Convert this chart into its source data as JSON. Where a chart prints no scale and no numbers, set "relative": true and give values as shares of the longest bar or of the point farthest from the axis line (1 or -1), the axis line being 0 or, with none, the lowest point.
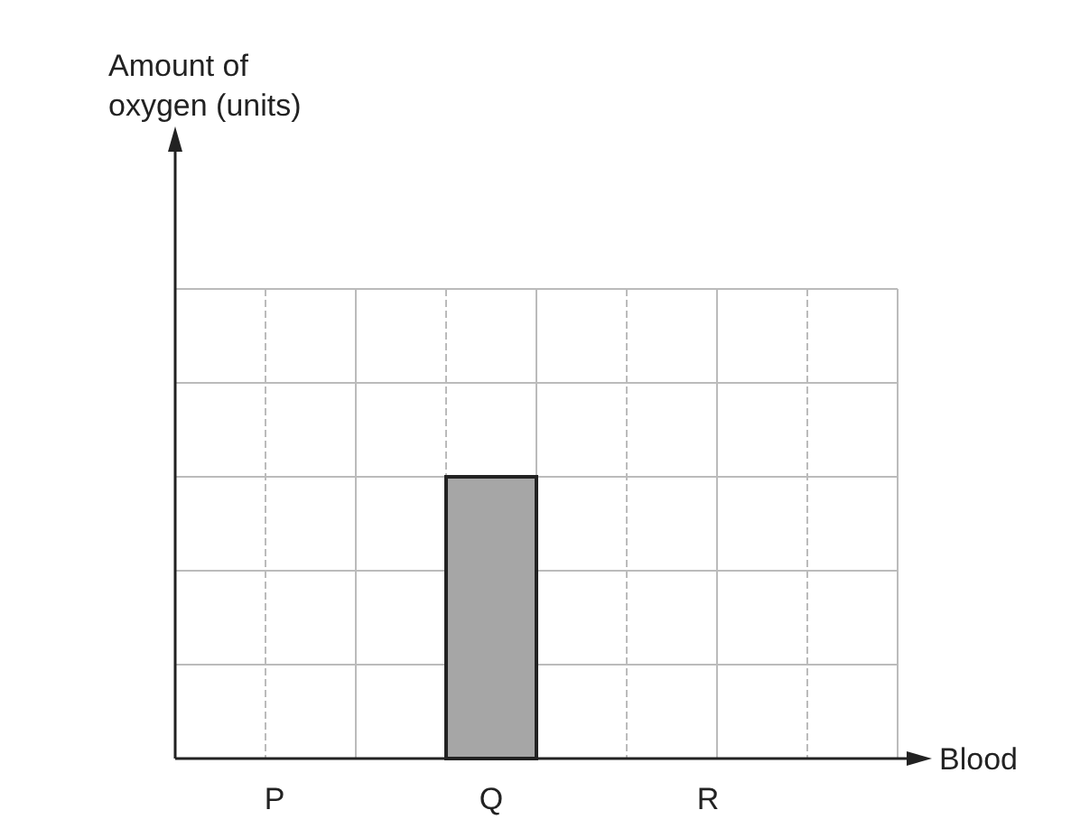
{
  "chart_data": {
    "type": "bar",
    "annotations": [
      "Amount of\noxygen (units)"
    ],
    "xlabel": "Blood",
    "categories": [
      "P",
      "Q",
      "R"
    ],
    "values": [
      null,
      1,
      null
    ],
    "color": "#a6a6a6",
    "relative": true,
    "grid": true
  }
}
